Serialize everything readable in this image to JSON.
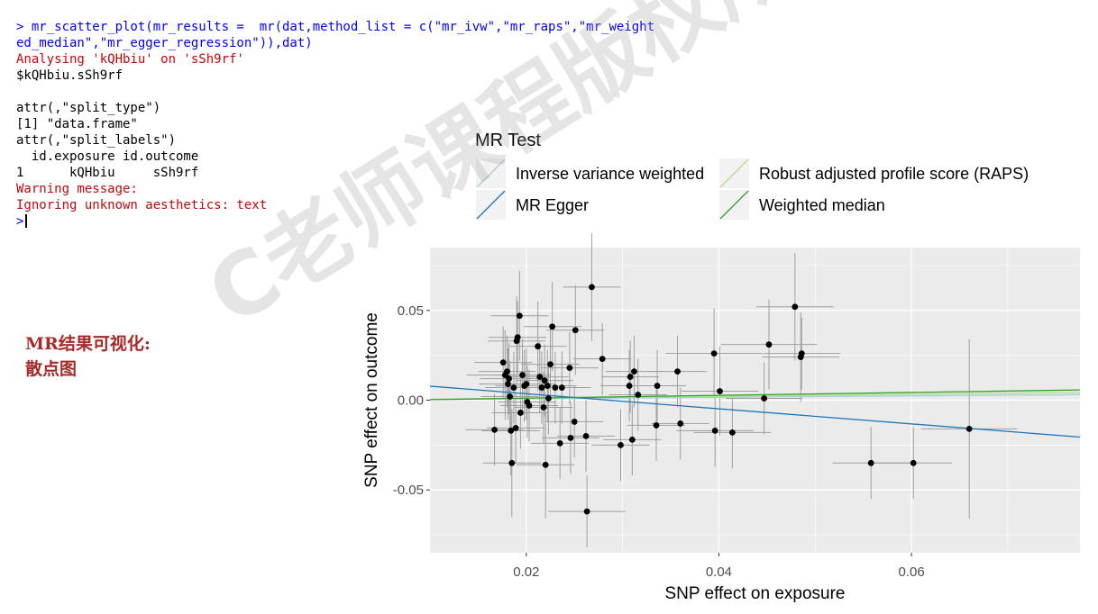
{
  "console": {
    "lines": [
      {
        "text": "> mr_scatter_plot(mr_results =  mr(dat,method_list = c(\"mr_ivw\",\"mr_raps\",\"mr_weight",
        "kind": "cmd"
      },
      {
        "text": "ed_median\",\"mr_egger_regression\")),dat)",
        "kind": "cmd"
      },
      {
        "text": "Analysing 'kQHbiu' on 'sSh9rf'",
        "kind": "err"
      },
      {
        "text": "$kQHbiu.sSh9rf",
        "kind": "out"
      },
      {
        "text": "",
        "kind": "out"
      },
      {
        "text": "attr(,\"split_type\")",
        "kind": "out"
      },
      {
        "text": "[1] \"data.frame\"",
        "kind": "out"
      },
      {
        "text": "attr(,\"split_labels\")",
        "kind": "out"
      },
      {
        "text": "  id.exposure id.outcome",
        "kind": "out"
      },
      {
        "text": "1      kQHbiu     sSh9rf",
        "kind": "out"
      },
      {
        "text": "Warning message:",
        "kind": "err"
      },
      {
        "text": "Ignoring unknown aesthetics: text",
        "kind": "err"
      }
    ],
    "prompt": ">"
  },
  "side_label": {
    "line1": "MR结果可视化:",
    "line2": "散点图"
  },
  "watermark": "C老师课程版权所有®",
  "colors": {
    "ivw": "#a6cee3",
    "egger": "#1f78b4",
    "raps": "#b2df8a",
    "wm": "#33a02c",
    "panel": "#ebebeb",
    "error": "#9e9e9e",
    "point": "#000000"
  },
  "chart_data": {
    "type": "scatter",
    "xlabel": "SNP effect on exposure",
    "ylabel": "SNP effect on outcome",
    "xlim": [
      0.01,
      0.0775
    ],
    "ylim": [
      -0.085,
      0.085
    ],
    "x_ticks": [
      0.02,
      0.04,
      0.06
    ],
    "x_tick_labels": [
      "0.02",
      "0.04",
      "0.06"
    ],
    "y_ticks": [
      -0.05,
      0.0,
      0.05
    ],
    "y_tick_labels": [
      "-0.05",
      "0.00",
      "0.05"
    ],
    "grid": true,
    "legend": {
      "title": "MR Test",
      "placement": "top",
      "entries": [
        {
          "label": "Inverse variance weighted",
          "key": "ivw"
        },
        {
          "label": "Robust adjusted profile score (RAPS)",
          "key": "raps"
        },
        {
          "label": "MR Egger",
          "key": "egger"
        },
        {
          "label": "Weighted median",
          "key": "wm"
        }
      ]
    },
    "lines": [
      {
        "key": "ivw",
        "intercept": 0.0,
        "slope": 0.04
      },
      {
        "key": "raps",
        "intercept": 0.0,
        "slope": 0.055
      },
      {
        "key": "egger",
        "intercept": 0.012,
        "slope": -0.42
      },
      {
        "key": "wm",
        "intercept": -0.0005,
        "slope": 0.08
      }
    ],
    "points": [
      {
        "x": 0.0167,
        "y": -0.0165,
        "xe": 0.003,
        "ye": 0.02
      },
      {
        "x": 0.0176,
        "y": 0.021,
        "xe": 0.003,
        "ye": 0.02
      },
      {
        "x": 0.0178,
        "y": 0.014,
        "xe": 0.004,
        "ye": 0.025
      },
      {
        "x": 0.018,
        "y": 0.016,
        "xe": 0.003,
        "ye": 0.02
      },
      {
        "x": 0.0181,
        "y": 0.009,
        "xe": 0.003,
        "ye": 0.02
      },
      {
        "x": 0.0182,
        "y": 0.012,
        "xe": 0.003,
        "ye": 0.02
      },
      {
        "x": 0.0183,
        "y": 0.002,
        "xe": 0.003,
        "ye": 0.02
      },
      {
        "x": 0.0184,
        "y": -0.017,
        "xe": 0.003,
        "ye": 0.025
      },
      {
        "x": 0.0185,
        "y": -0.035,
        "xe": 0.003,
        "ye": 0.03
      },
      {
        "x": 0.0187,
        "y": 0.007,
        "xe": 0.003,
        "ye": 0.02
      },
      {
        "x": 0.0189,
        "y": -0.0155,
        "xe": 0.003,
        "ye": 0.02
      },
      {
        "x": 0.019,
        "y": 0.033,
        "xe": 0.003,
        "ye": 0.025
      },
      {
        "x": 0.0191,
        "y": 0.035,
        "xe": 0.003,
        "ye": 0.02
      },
      {
        "x": 0.0193,
        "y": 0.047,
        "xe": 0.003,
        "ye": 0.025
      },
      {
        "x": 0.0194,
        "y": -0.007,
        "xe": 0.003,
        "ye": 0.02
      },
      {
        "x": 0.0196,
        "y": 0.014,
        "xe": 0.003,
        "ye": 0.02
      },
      {
        "x": 0.0198,
        "y": 0.008,
        "xe": 0.003,
        "ye": 0.02
      },
      {
        "x": 0.02,
        "y": 0.009,
        "xe": 0.003,
        "ye": 0.02
      },
      {
        "x": 0.0201,
        "y": -0.001,
        "xe": 0.003,
        "ye": 0.02
      },
      {
        "x": 0.0203,
        "y": -0.003,
        "xe": 0.003,
        "ye": 0.02
      },
      {
        "x": 0.0212,
        "y": 0.03,
        "xe": 0.003,
        "ye": 0.025
      },
      {
        "x": 0.0214,
        "y": 0.013,
        "xe": 0.003,
        "ye": 0.02
      },
      {
        "x": 0.0216,
        "y": 0.007,
        "xe": 0.003,
        "ye": 0.02
      },
      {
        "x": 0.0218,
        "y": -0.004,
        "xe": 0.003,
        "ye": 0.02
      },
      {
        "x": 0.0219,
        "y": 0.011,
        "xe": 0.003,
        "ye": 0.02
      },
      {
        "x": 0.022,
        "y": -0.036,
        "xe": 0.003,
        "ye": 0.03
      },
      {
        "x": 0.0222,
        "y": 0.008,
        "xe": 0.003,
        "ye": 0.02
      },
      {
        "x": 0.0223,
        "y": 0.001,
        "xe": 0.003,
        "ye": 0.02
      },
      {
        "x": 0.0225,
        "y": 0.02,
        "xe": 0.003,
        "ye": 0.02
      },
      {
        "x": 0.0227,
        "y": 0.041,
        "xe": 0.003,
        "ye": 0.025
      },
      {
        "x": 0.023,
        "y": 0.007,
        "xe": 0.003,
        "ye": 0.02
      },
      {
        "x": 0.0235,
        "y": -0.024,
        "xe": 0.003,
        "ye": 0.02
      },
      {
        "x": 0.0237,
        "y": 0.007,
        "xe": 0.003,
        "ye": 0.02
      },
      {
        "x": 0.0245,
        "y": 0.018,
        "xe": 0.003,
        "ye": 0.02
      },
      {
        "x": 0.0246,
        "y": -0.021,
        "xe": 0.003,
        "ye": 0.02
      },
      {
        "x": 0.025,
        "y": -0.012,
        "xe": 0.003,
        "ye": 0.02
      },
      {
        "x": 0.0251,
        "y": 0.039,
        "xe": 0.003,
        "ye": 0.025
      },
      {
        "x": 0.0262,
        "y": -0.02,
        "xe": 0.003,
        "ye": 0.02
      },
      {
        "x": 0.0263,
        "y": -0.062,
        "xe": 0.004,
        "ye": 0.02
      },
      {
        "x": 0.0268,
        "y": 0.063,
        "xe": 0.003,
        "ye": 0.03
      },
      {
        "x": 0.0279,
        "y": 0.023,
        "xe": 0.003,
        "ye": 0.02
      },
      {
        "x": 0.0298,
        "y": -0.025,
        "xe": 0.003,
        "ye": 0.02
      },
      {
        "x": 0.0307,
        "y": 0.008,
        "xe": 0.003,
        "ye": 0.02
      },
      {
        "x": 0.0308,
        "y": 0.013,
        "xe": 0.003,
        "ye": 0.02
      },
      {
        "x": 0.031,
        "y": -0.022,
        "xe": 0.003,
        "ye": 0.02
      },
      {
        "x": 0.0312,
        "y": 0.016,
        "xe": 0.003,
        "ye": 0.02
      },
      {
        "x": 0.0316,
        "y": 0.003,
        "xe": 0.003,
        "ye": 0.02
      },
      {
        "x": 0.0335,
        "y": -0.014,
        "xe": 0.003,
        "ye": 0.02
      },
      {
        "x": 0.0336,
        "y": 0.008,
        "xe": 0.003,
        "ye": 0.02
      },
      {
        "x": 0.0357,
        "y": 0.016,
        "xe": 0.003,
        "ye": 0.02
      },
      {
        "x": 0.036,
        "y": -0.013,
        "xe": 0.003,
        "ye": 0.02
      },
      {
        "x": 0.0395,
        "y": 0.026,
        "xe": 0.005,
        "ye": 0.025
      },
      {
        "x": 0.0396,
        "y": -0.017,
        "xe": 0.004,
        "ye": 0.02
      },
      {
        "x": 0.0401,
        "y": 0.005,
        "xe": 0.004,
        "ye": 0.025
      },
      {
        "x": 0.0414,
        "y": -0.018,
        "xe": 0.004,
        "ye": 0.02
      },
      {
        "x": 0.0447,
        "y": 0.001,
        "xe": 0.004,
        "ye": 0.02
      },
      {
        "x": 0.0452,
        "y": 0.031,
        "xe": 0.005,
        "ye": 0.025
      },
      {
        "x": 0.0479,
        "y": 0.052,
        "xe": 0.004,
        "ye": 0.03
      },
      {
        "x": 0.0485,
        "y": 0.024,
        "xe": 0.004,
        "ye": 0.025
      },
      {
        "x": 0.0486,
        "y": 0.026,
        "xe": 0.004,
        "ye": 0.02
      },
      {
        "x": 0.0558,
        "y": -0.035,
        "xe": 0.004,
        "ye": 0.02
      },
      {
        "x": 0.0602,
        "y": -0.035,
        "xe": 0.004,
        "ye": 0.02
      },
      {
        "x": 0.066,
        "y": -0.016,
        "xe": 0.005,
        "ye": 0.05
      }
    ]
  }
}
